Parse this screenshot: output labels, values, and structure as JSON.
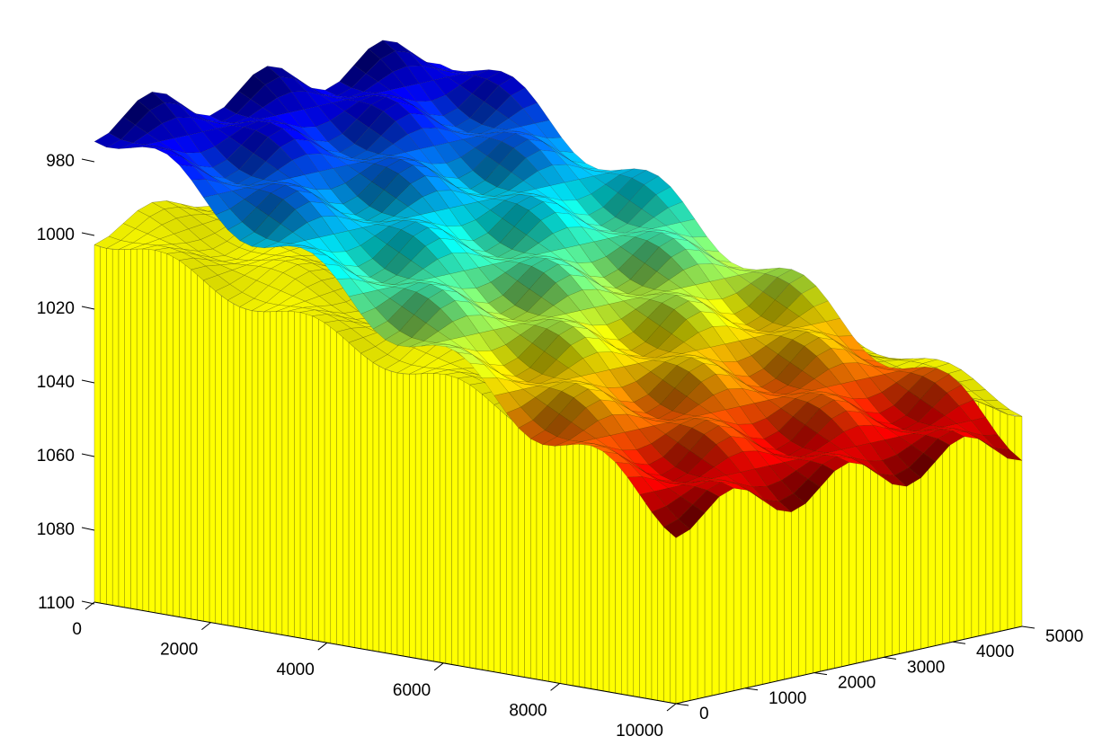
{
  "chart_data": {
    "type": "surface3d",
    "title": "",
    "xlabel": "",
    "ylabel": "",
    "zlabel": "",
    "x_ticks": [
      "0",
      "2000",
      "4000",
      "6000",
      "8000",
      "10000"
    ],
    "y_ticks": [
      "0",
      "1000",
      "2000",
      "3000",
      "4000",
      "5000"
    ],
    "z_ticks": [
      "980",
      "1000",
      "1020",
      "1040",
      "1060",
      "1080",
      "1100"
    ],
    "xlim": [
      0,
      10000
    ],
    "ylim": [
      0,
      5000
    ],
    "zlim": [
      980,
      1100
    ],
    "z_direction": "reversed",
    "grid": false,
    "colormap": "jet",
    "surfaces": [
      {
        "name": "",
        "kind": "depth surface with bumps",
        "depth_at_x0": 970,
        "depth_at_x10000": 1050,
        "bump_amplitude": 5,
        "bumps_along_x": 4,
        "bumps_along_y": 3,
        "color": "jet colormap by depth"
      },
      {
        "name": "",
        "kind": "solid block",
        "top_depth_at_x0": 1000,
        "top_depth_at_x10000": 1040,
        "bottom_depth": 1100,
        "color": "#ffff00"
      }
    ]
  }
}
